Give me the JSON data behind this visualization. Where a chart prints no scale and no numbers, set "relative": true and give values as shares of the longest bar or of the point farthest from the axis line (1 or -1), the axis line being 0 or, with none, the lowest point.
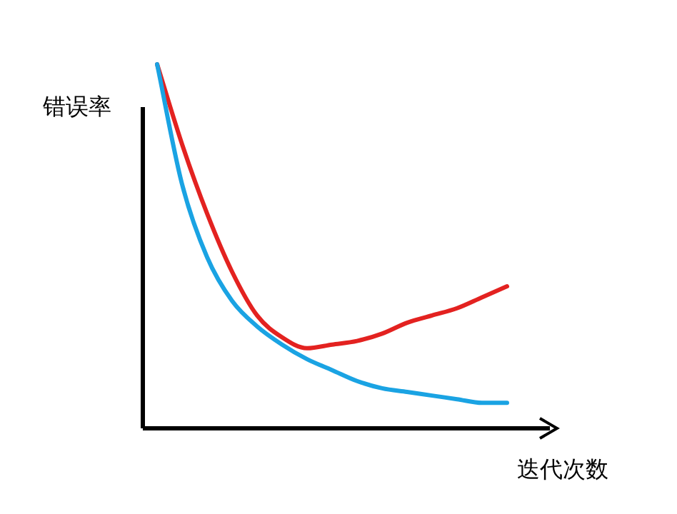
{
  "chart_data": {
    "type": "line",
    "relative": true,
    "xlabel": "迭代次数",
    "ylabel": "错误率",
    "categories": [
      null,
      null,
      null,
      null,
      null,
      null,
      null,
      null,
      null,
      null,
      null,
      null,
      null,
      null,
      null
    ],
    "series": [
      {
        "color": "#e32220",
        "values": [
          1.0,
          0.78,
          0.59,
          0.43,
          0.31,
          0.25,
          0.22,
          0.23,
          0.24,
          0.26,
          0.29,
          0.31,
          0.33,
          0.36,
          0.39
        ]
      },
      {
        "color": "#1aa3e3",
        "values": [
          1.0,
          0.67,
          0.47,
          0.35,
          0.28,
          0.23,
          0.19,
          0.16,
          0.13,
          0.11,
          0.1,
          0.09,
          0.08,
          0.07,
          0.07
        ]
      }
    ]
  }
}
